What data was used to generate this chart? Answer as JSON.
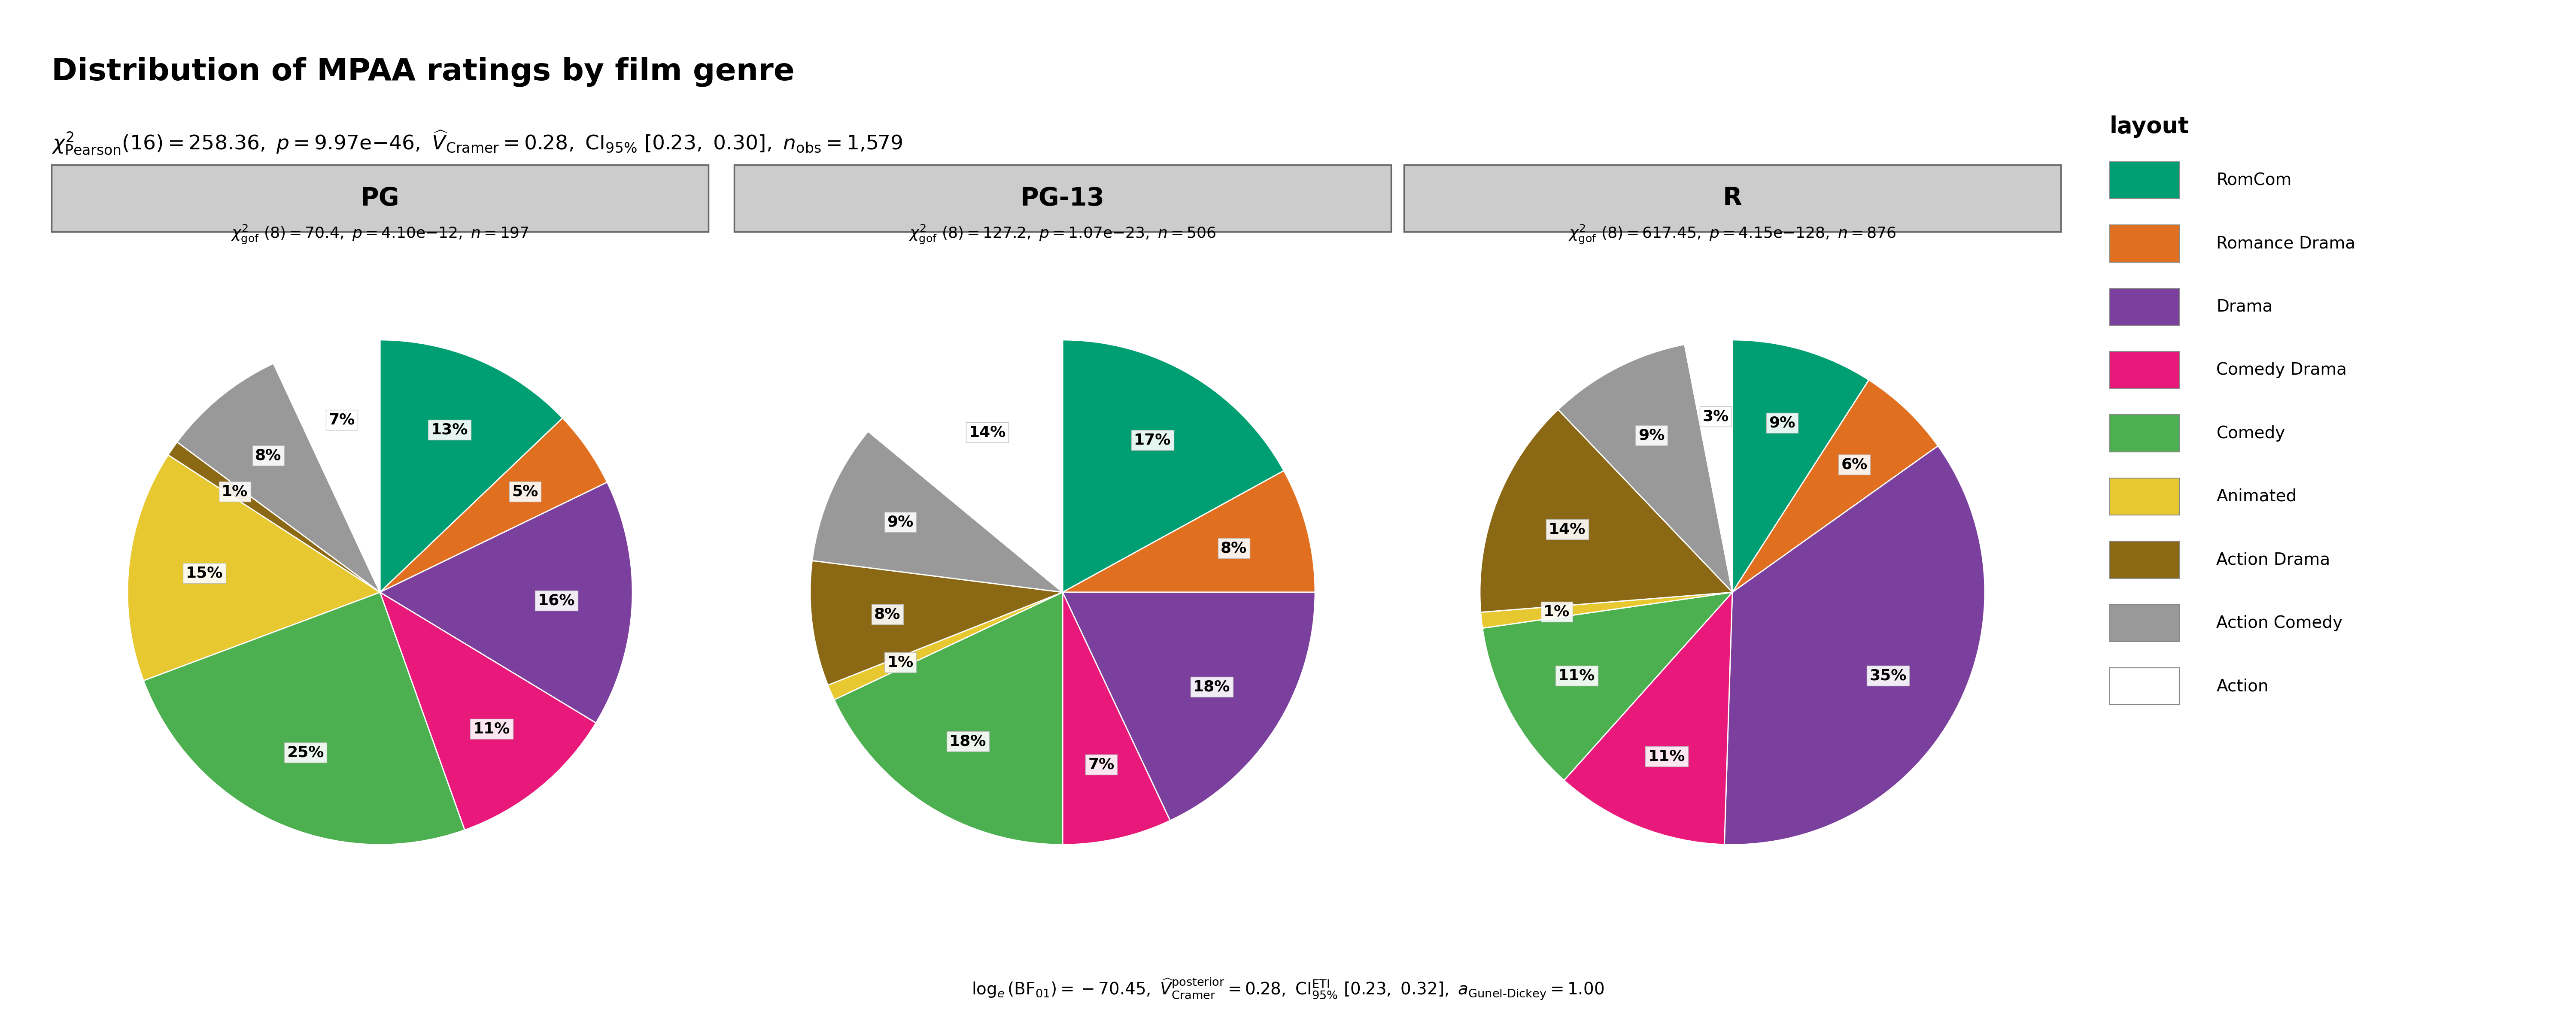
{
  "title": "Distribution of MPAA ratings by film genre",
  "rating_labels": [
    "PG",
    "PG-13",
    "R"
  ],
  "genres": [
    "RomCom",
    "Romance Drama",
    "Drama",
    "Comedy Drama",
    "Comedy",
    "Animated",
    "Action Drama",
    "Action Comedy",
    "Action"
  ],
  "genre_colors": [
    "#009E73",
    "#E07020",
    "#7B3F9E",
    "#E8197A",
    "#4CAF50",
    "#E8C830",
    "#8B6914",
    "#999999",
    "#FFFFFF"
  ],
  "pg_values": [
    13,
    5,
    16,
    11,
    25,
    15,
    1,
    8,
    7
  ],
  "pg_labels": [
    "13%",
    "5%",
    "16%",
    "11%",
    "25%",
    "15%",
    "1%",
    "8%",
    "7%"
  ],
  "pg13_values": [
    17,
    8,
    18,
    7,
    18,
    1,
    8,
    9,
    14
  ],
  "pg13_labels": [
    "17%",
    "8%",
    "18%",
    "7%",
    "18%",
    "1%",
    "8%",
    "9%",
    "14%"
  ],
  "r_values": [
    9,
    6,
    35,
    11,
    11,
    1,
    14,
    9,
    3
  ],
  "r_labels": [
    "9%",
    "6%",
    "35%",
    "11%",
    "11%",
    "1%",
    "14%",
    "9%",
    "3%"
  ],
  "panel_bg": "#D3D3D3",
  "header_bg": "#CCCCCC"
}
